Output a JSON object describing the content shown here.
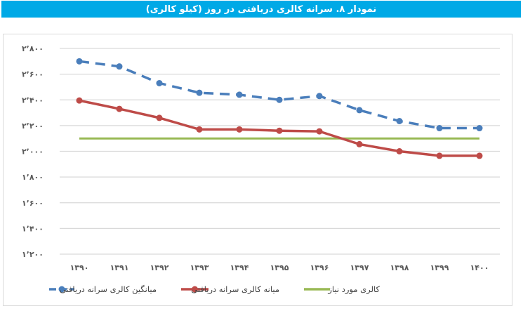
{
  "header": {
    "title": "نمودار ۸. سرانه کالری دریافتی در روز (کیلو کالری)",
    "background_color": "#00a9e6"
  },
  "chart_data": {
    "type": "line",
    "title": "نمودار ۸. سرانه کالری دریافتی در روز (کیلو کالری)",
    "xlabel": "",
    "ylabel": "",
    "ylim": [
      1200,
      2800
    ],
    "yticks": [
      2800,
      2600,
      2400,
      2200,
      2000,
      1800,
      1600,
      1400,
      1200
    ],
    "ytick_labels": [
      "۲٬۸۰۰",
      "۲٬۶۰۰",
      "۲٬۴۰۰",
      "۲٬۲۰۰",
      "۲٬۰۰۰",
      "۱٬۸۰۰",
      "۱٬۶۰۰",
      "۱٬۴۰۰",
      "۱٬۲۰۰"
    ],
    "grid": true,
    "legend_position": "bottom",
    "categories": [
      "1390",
      "1391",
      "1392",
      "1393",
      "1394",
      "1395",
      "1396",
      "1397",
      "1398",
      "1399",
      "1400"
    ],
    "category_labels": [
      "۱۳۹۰",
      "۱۳۹۱",
      "۱۳۹۲",
      "۱۳۹۳",
      "۱۳۹۴",
      "۱۳۹۵",
      "۱۳۹۶",
      "۱۳۹۷",
      "۱۳۹۸",
      "۱۳۹۹",
      "۱۴۰۰"
    ],
    "series": [
      {
        "name": "میانگین کالری سرانه دریافتی",
        "color": "#4a7ebb",
        "style": "dashed-with-markers",
        "values": [
          2700,
          2660,
          2530,
          2455,
          2440,
          2400,
          2430,
          2320,
          2235,
          2180,
          2180
        ]
      },
      {
        "name": "میانه کالری سرانه دریافتی",
        "color": "#be4b48",
        "style": "solid-with-markers",
        "values": [
          2395,
          2330,
          2260,
          2170,
          2170,
          2160,
          2155,
          2055,
          2000,
          1965,
          1965
        ]
      },
      {
        "name": "کالری مورد نیاز",
        "color": "#98b954",
        "style": "solid",
        "values": [
          2100,
          2100,
          2100,
          2100,
          2100,
          2100,
          2100,
          2100,
          2100,
          2100,
          2100
        ]
      }
    ]
  },
  "legend": [
    {
      "label": "میانگین کالری سرانه دریافتی",
      "color": "#4a7ebb"
    },
    {
      "label": "میانه کالری سرانه دریافتی",
      "color": "#be4b48"
    },
    {
      "label": "کالری مورد نیاز",
      "color": "#98b954"
    }
  ]
}
